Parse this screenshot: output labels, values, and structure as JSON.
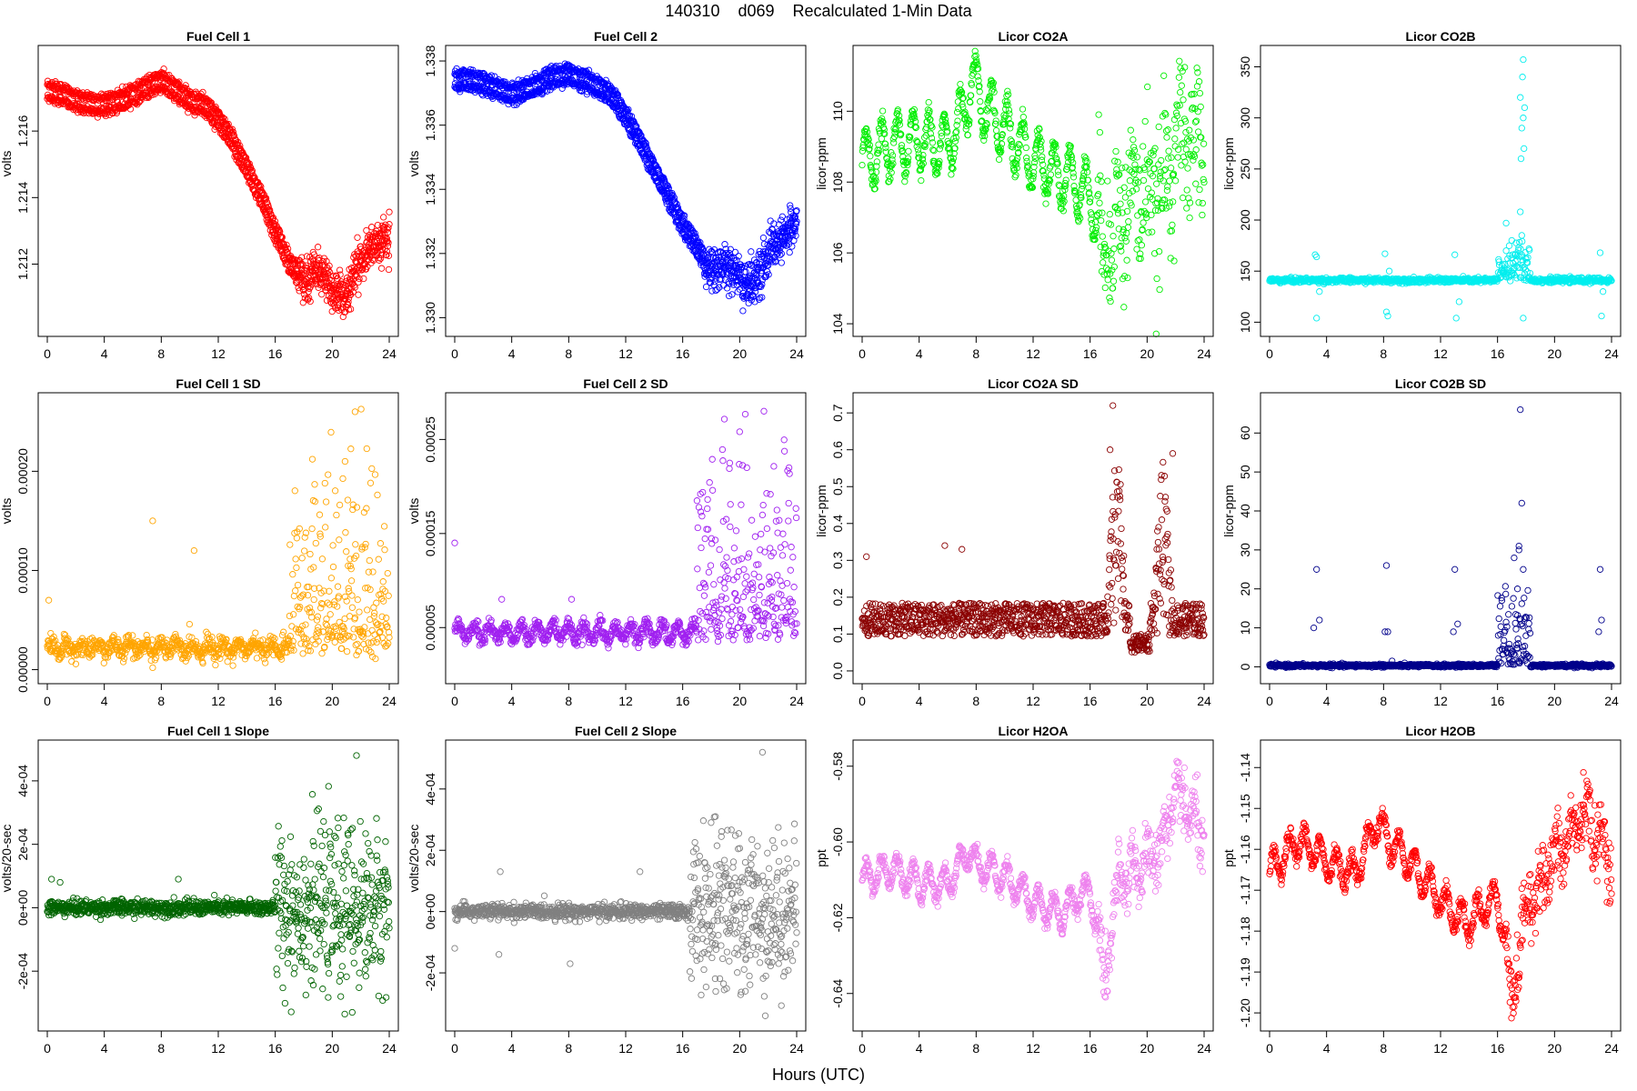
{
  "figure": {
    "title": "140310    d069    Recalculated 1-Min Data",
    "xlabel": "Hours (UTC)"
  },
  "chart_data": [
    {
      "id": "fc1",
      "type": "scatter",
      "title": "Fuel Cell 1",
      "ylabel": "volts",
      "color": "#ff0000",
      "xlim": [
        0,
        24
      ],
      "ylim": [
        1.2101,
        1.2183
      ],
      "xticks": [
        0,
        4,
        8,
        12,
        16,
        20,
        24
      ],
      "yticks": [
        1.212,
        1.214,
        1.216
      ],
      "ytick_labels": [
        "1.212",
        "1.214",
        "1.216"
      ],
      "gen": {
        "mode": "anchors",
        "x": [
          0,
          1,
          2,
          3,
          4,
          5,
          6,
          7,
          8,
          9,
          10,
          11,
          12,
          13,
          14,
          15,
          16,
          17,
          18,
          19,
          20,
          21,
          22,
          23,
          24
        ],
        "y": [
          1.2172,
          1.2171,
          1.2169,
          1.2168,
          1.2168,
          1.2169,
          1.2171,
          1.2173,
          1.2175,
          1.2172,
          1.2169,
          1.2168,
          1.2163,
          1.2157,
          1.2149,
          1.214,
          1.213,
          1.212,
          1.2115,
          1.2118,
          1.2112,
          1.211,
          1.2122,
          1.2126,
          1.213
        ],
        "offsets": [
          0.0002,
          -0.0002
        ],
        "noise": 7e-05,
        "tailNoise": 0.00025,
        "tailStart": 17.5,
        "n": 720
      }
    },
    {
      "id": "fc2",
      "type": "scatter",
      "title": "Fuel Cell 2",
      "ylabel": "volts",
      "color": "#0000ff",
      "xlim": [
        0,
        24
      ],
      "ylim": [
        1.3297,
        1.3382
      ],
      "xticks": [
        0,
        4,
        8,
        12,
        16,
        20,
        24
      ],
      "yticks": [
        1.33,
        1.332,
        1.334,
        1.336,
        1.338
      ],
      "ytick_labels": [
        "1.330",
        "1.332",
        "1.334",
        "1.336",
        "1.338"
      ],
      "gen": {
        "mode": "anchors",
        "x": [
          0,
          1,
          2,
          3,
          4,
          5,
          6,
          7,
          8,
          9,
          10,
          11,
          12,
          13,
          14,
          15,
          16,
          17,
          18,
          19,
          20,
          21,
          22,
          23,
          24
        ],
        "y": [
          1.3374,
          1.3374,
          1.3373,
          1.3371,
          1.337,
          1.3371,
          1.3373,
          1.3375,
          1.3376,
          1.3374,
          1.3372,
          1.3369,
          1.3363,
          1.3355,
          1.3346,
          1.3338,
          1.3329,
          1.3322,
          1.3314,
          1.3317,
          1.3312,
          1.331,
          1.332,
          1.3325,
          1.333
        ],
        "offsets": [
          0.0002,
          -0.0002
        ],
        "noise": 7e-05,
        "tailNoise": 0.0003,
        "tailStart": 17.5,
        "n": 720
      }
    },
    {
      "id": "co2a",
      "type": "scatter",
      "title": "Licor CO2A",
      "ylabel": "licor-ppm",
      "color": "#00ee00",
      "xlim": [
        0,
        24
      ],
      "ylim": [
        103.9,
        111.6
      ],
      "xticks": [
        0,
        4,
        8,
        12,
        16,
        20,
        24
      ],
      "yticks": [
        104,
        106,
        108,
        110
      ],
      "ytick_labels": [
        "104",
        "106",
        "108",
        "110"
      ],
      "gen": {
        "mode": "anchors",
        "x": [
          0,
          2,
          4,
          6,
          7,
          7.7,
          8.5,
          10,
          12,
          14,
          15,
          16,
          17,
          18,
          19,
          20,
          21,
          22,
          23,
          24
        ],
        "y": [
          108.6,
          109.0,
          109.2,
          109.0,
          109.8,
          110.8,
          110.2,
          109.5,
          108.6,
          108.2,
          108.0,
          107.6,
          106.4,
          107.0,
          107.6,
          107.8,
          107.4,
          109.4,
          109.0,
          109.3
        ],
        "wave": {
          "amp": 0.8,
          "period": 1.1
        },
        "noise": 0.15,
        "tailNoise": 1.0,
        "tailStart": 16.5,
        "n": 900
      }
    },
    {
      "id": "co2b",
      "type": "scatter",
      "title": "Licor CO2B",
      "ylabel": "licor-ppm",
      "color": "#00eeee",
      "xlim": [
        0,
        24
      ],
      "ylim": [
        95,
        362
      ],
      "xticks": [
        0,
        4,
        8,
        12,
        16,
        20,
        24
      ],
      "yticks": [
        100,
        150,
        200,
        250,
        300,
        350
      ],
      "ytick_labels": [
        "100",
        "150",
        "200",
        "250",
        "300",
        "350"
      ],
      "gen": {
        "mode": "base",
        "base": 141,
        "noise": 1.2,
        "n": 900,
        "bursts": [
          [
            16,
            18.3,
            6
          ]
        ],
        "extra": [
          [
            3.2,
            166
          ],
          [
            3.3,
            164
          ],
          [
            3.3,
            104
          ],
          [
            3.5,
            130
          ],
          [
            8.1,
            167
          ],
          [
            8.2,
            110
          ],
          [
            8.3,
            106
          ],
          [
            8.4,
            150
          ],
          [
            13.0,
            166
          ],
          [
            13.1,
            104
          ],
          [
            13.3,
            120
          ],
          [
            16.6,
            197
          ],
          [
            17.0,
            180
          ],
          [
            17.6,
            208
          ],
          [
            17.7,
            185
          ],
          [
            17.6,
            320
          ],
          [
            17.65,
            260
          ],
          [
            17.7,
            290
          ],
          [
            17.75,
            340
          ],
          [
            17.8,
            357
          ],
          [
            17.8,
            300
          ],
          [
            17.85,
            270
          ],
          [
            17.9,
            310
          ],
          [
            18.0,
            163
          ],
          [
            17.8,
            104
          ],
          [
            23.2,
            168
          ],
          [
            23.3,
            106
          ],
          [
            23.4,
            130
          ]
        ]
      }
    },
    {
      "id": "fc1sd",
      "type": "scatter",
      "title": "Fuel Cell 1 SD",
      "ylabel": "volts",
      "color": "#ffa500",
      "xlim": [
        0,
        24
      ],
      "ylim": [
        -5e-06,
        0.00027
      ],
      "xticks": [
        0,
        4,
        8,
        12,
        16,
        20,
        24
      ],
      "yticks": [
        0,
        0.0001,
        0.0002
      ],
      "ytick_labels": [
        "0.00000",
        "0.00010",
        "0.00020"
      ],
      "gen": {
        "mode": "sd",
        "base": 2.2e-05,
        "wave": {
          "amp": 5e-06,
          "period": 1.1
        },
        "noise": 5e-06,
        "spikeStart": 17,
        "spikeMax": 0.00018,
        "n": 900,
        "extra": [
          [
            0.1,
            7e-05
          ],
          [
            7.4,
            0.00015
          ],
          [
            10.3,
            0.00012
          ],
          [
            21.6,
            0.00026
          ],
          [
            20.9,
            0.00021
          ]
        ]
      }
    },
    {
      "id": "fc2sd",
      "type": "scatter",
      "title": "Fuel Cell 2 SD",
      "ylabel": "volts",
      "color": "#a020f0",
      "xlim": [
        0,
        24
      ],
      "ylim": [
        0.0,
        0.00029
      ],
      "xticks": [
        0,
        4,
        8,
        12,
        16,
        20,
        24
      ],
      "yticks": [
        5e-05,
        0.00015,
        0.00025
      ],
      "ytick_labels": [
        "0.00005",
        "0.00015",
        "0.00025"
      ],
      "gen": {
        "mode": "sd",
        "base": 4.5e-05,
        "wave": {
          "amp": 8e-06,
          "period": 1.1
        },
        "noise": 4e-06,
        "spikeStart": 17,
        "spikeMax": 0.00018,
        "n": 900,
        "extra": [
          [
            0.0,
            0.00014
          ],
          [
            3.3,
            8e-05
          ],
          [
            8.2,
            8e-05
          ],
          [
            21.7,
            0.00028
          ],
          [
            20.5,
            0.00022
          ]
        ]
      }
    },
    {
      "id": "co2asd",
      "type": "scatter",
      "title": "Licor CO2A SD",
      "ylabel": "licor-ppm",
      "color": "#8b0000",
      "xlim": [
        0,
        24
      ],
      "ylim": [
        -0.01,
        0.73
      ],
      "xticks": [
        0,
        4,
        8,
        12,
        16,
        20,
        24
      ],
      "yticks": [
        0,
        0.1,
        0.2,
        0.3,
        0.4,
        0.5,
        0.6,
        0.7
      ],
      "ytick_labels": [
        "0.0",
        "0.1",
        "0.2",
        "0.3",
        "0.4",
        "0.5",
        "0.6",
        "0.7"
      ],
      "gen": {
        "mode": "band",
        "base": 0.13,
        "spread": 0.09,
        "n": 1100,
        "bumps": [
          [
            17.2,
            18.5,
            0.35
          ],
          [
            20.4,
            21.8,
            0.3
          ]
        ],
        "dips": [
          [
            18.8,
            20.2,
            0.05
          ]
        ],
        "extra": [
          [
            17.6,
            0.72
          ],
          [
            17.4,
            0.6
          ],
          [
            21.8,
            0.59
          ],
          [
            0.3,
            0.31
          ],
          [
            5.8,
            0.34
          ],
          [
            7.0,
            0.33
          ]
        ]
      }
    },
    {
      "id": "co2bsd",
      "type": "scatter",
      "title": "Licor CO2B SD",
      "ylabel": "licor-ppm",
      "color": "#00008b",
      "xlim": [
        0,
        24
      ],
      "ylim": [
        -2,
        68
      ],
      "xticks": [
        0,
        4,
        8,
        12,
        16,
        20,
        24
      ],
      "yticks": [
        0,
        10,
        20,
        30,
        40,
        50,
        60
      ],
      "ytick_labels": [
        "0",
        "10",
        "20",
        "30",
        "40",
        "50",
        "60"
      ],
      "gen": {
        "mode": "base",
        "base": 0.3,
        "noise": 0.2,
        "n": 900,
        "bursts": [
          [
            16,
            18.3,
            3
          ]
        ],
        "extra": [
          [
            3.1,
            10
          ],
          [
            3.3,
            25
          ],
          [
            3.5,
            12
          ],
          [
            8.1,
            9
          ],
          [
            8.2,
            26
          ],
          [
            8.3,
            9
          ],
          [
            8.6,
            1.5
          ],
          [
            12.9,
            9
          ],
          [
            13.0,
            25
          ],
          [
            13.2,
            11
          ],
          [
            16.3,
            17
          ],
          [
            17.5,
            30
          ],
          [
            17.4,
            20
          ],
          [
            17.6,
            66
          ],
          [
            17.7,
            42
          ],
          [
            17.8,
            25
          ],
          [
            17.5,
            31
          ],
          [
            23.1,
            9
          ],
          [
            23.2,
            25
          ],
          [
            23.3,
            12
          ]
        ]
      }
    },
    {
      "id": "fc1slope",
      "type": "scatter",
      "title": "Fuel Cell 1 Slope",
      "ylabel": "volts/20-sec",
      "color": "#006400",
      "xlim": [
        0,
        24
      ],
      "ylim": [
        -0.00036,
        0.0005
      ],
      "xticks": [
        0,
        4,
        8,
        12,
        16,
        20,
        24
      ],
      "yticks": [
        -0.0002,
        0,
        0.0002,
        0.0004
      ],
      "ytick_labels": [
        "-2e-04",
        "0e+00",
        "2e-04",
        "4e-04"
      ],
      "gen": {
        "mode": "slope",
        "noise": 1.2e-05,
        "tailStart": 16,
        "tailNoise": 0.00012,
        "n": 1100,
        "extra": [
          [
            0.3,
            9e-05
          ],
          [
            0.9,
            8e-05
          ],
          [
            9.2,
            9e-05
          ],
          [
            21.7,
            0.00048
          ],
          [
            21.4,
            -0.00033
          ],
          [
            20.6,
            -0.00028
          ]
        ]
      }
    },
    {
      "id": "fc2slope",
      "type": "scatter",
      "title": "Fuel Cell 2 Slope",
      "ylabel": "volts/20-sec",
      "color": "#808080",
      "xlim": [
        0,
        24
      ],
      "ylim": [
        -0.00036,
        0.00053
      ],
      "xticks": [
        0,
        4,
        8,
        12,
        16,
        20,
        24
      ],
      "yticks": [
        -0.0002,
        0,
        0.0002,
        0.0004
      ],
      "ytick_labels": [
        "-2e-04",
        "0e+00",
        "2e-04",
        "4e-04"
      ],
      "gen": {
        "mode": "slope",
        "noise": 1.2e-05,
        "tailStart": 16.5,
        "tailNoise": 0.00012,
        "n": 1100,
        "extra": [
          [
            0.0,
            -0.00012
          ],
          [
            3.2,
            0.00013
          ],
          [
            3.1,
            -0.00014
          ],
          [
            8.1,
            -0.00017
          ],
          [
            13.0,
            0.00013
          ],
          [
            18.3,
            0.00031
          ],
          [
            21.6,
            0.00052
          ],
          [
            21.8,
            -0.00034
          ],
          [
            20.4,
            -0.00026
          ]
        ]
      }
    },
    {
      "id": "h2oa",
      "type": "scatter",
      "title": "Licor H2OA",
      "ylabel": "ppt",
      "color": "#ee82ee",
      "xlim": [
        0,
        24
      ],
      "ylim": [
        -0.6475,
        -0.5755
      ],
      "xticks": [
        0,
        4,
        8,
        12,
        16,
        20,
        24
      ],
      "yticks": [
        -0.64,
        -0.62,
        -0.6,
        -0.58
      ],
      "ytick_labels": [
        "-0.64",
        "-0.62",
        "-0.60",
        "-0.58"
      ],
      "gen": {
        "mode": "anchors",
        "x": [
          0,
          2,
          4,
          6,
          7.5,
          8,
          10,
          12,
          14,
          15,
          16,
          16.5,
          17,
          18,
          19,
          20,
          21,
          22,
          23,
          24
        ],
        "y": [
          -0.61,
          -0.607,
          -0.611,
          -0.611,
          -0.602,
          -0.606,
          -0.609,
          -0.616,
          -0.619,
          -0.615,
          -0.613,
          -0.622,
          -0.637,
          -0.611,
          -0.607,
          -0.606,
          -0.601,
          -0.588,
          -0.592,
          -0.6
        ],
        "wave": {
          "amp": 0.004,
          "period": 1.1
        },
        "noise": 0.001,
        "tailNoise": 0.004,
        "tailStart": 16.5,
        "n": 900
      }
    },
    {
      "id": "h2ob",
      "type": "scatter",
      "title": "Licor H2OB",
      "ylabel": "ppt",
      "color": "#ff0000",
      "xlim": [
        0,
        24
      ],
      "ylim": [
        -1.2022,
        -1.1355
      ],
      "xticks": [
        0,
        4,
        8,
        12,
        16,
        20,
        24
      ],
      "yticks": [
        -1.2,
        -1.19,
        -1.18,
        -1.17,
        -1.16,
        -1.15,
        -1.14
      ],
      "ytick_labels": [
        "-1.20",
        "-1.19",
        "-1.18",
        "-1.17",
        "-1.16",
        "-1.15",
        "-1.14"
      ],
      "gen": {
        "mode": "anchors",
        "x": [
          0,
          2,
          3,
          4,
          6,
          7.5,
          8,
          10,
          12,
          13,
          14,
          15,
          16,
          16.5,
          17,
          18,
          19,
          20,
          21,
          22,
          23,
          24
        ],
        "y": [
          -1.166,
          -1.158,
          -1.16,
          -1.163,
          -1.166,
          -1.153,
          -1.156,
          -1.164,
          -1.172,
          -1.176,
          -1.178,
          -1.174,
          -1.172,
          -1.181,
          -1.196,
          -1.175,
          -1.168,
          -1.162,
          -1.158,
          -1.15,
          -1.157,
          -1.163
        ],
        "wave": {
          "amp": 0.004,
          "period": 1.1
        },
        "noise": 0.001,
        "tailNoise": 0.004,
        "tailStart": 16.5,
        "n": 900
      }
    }
  ]
}
